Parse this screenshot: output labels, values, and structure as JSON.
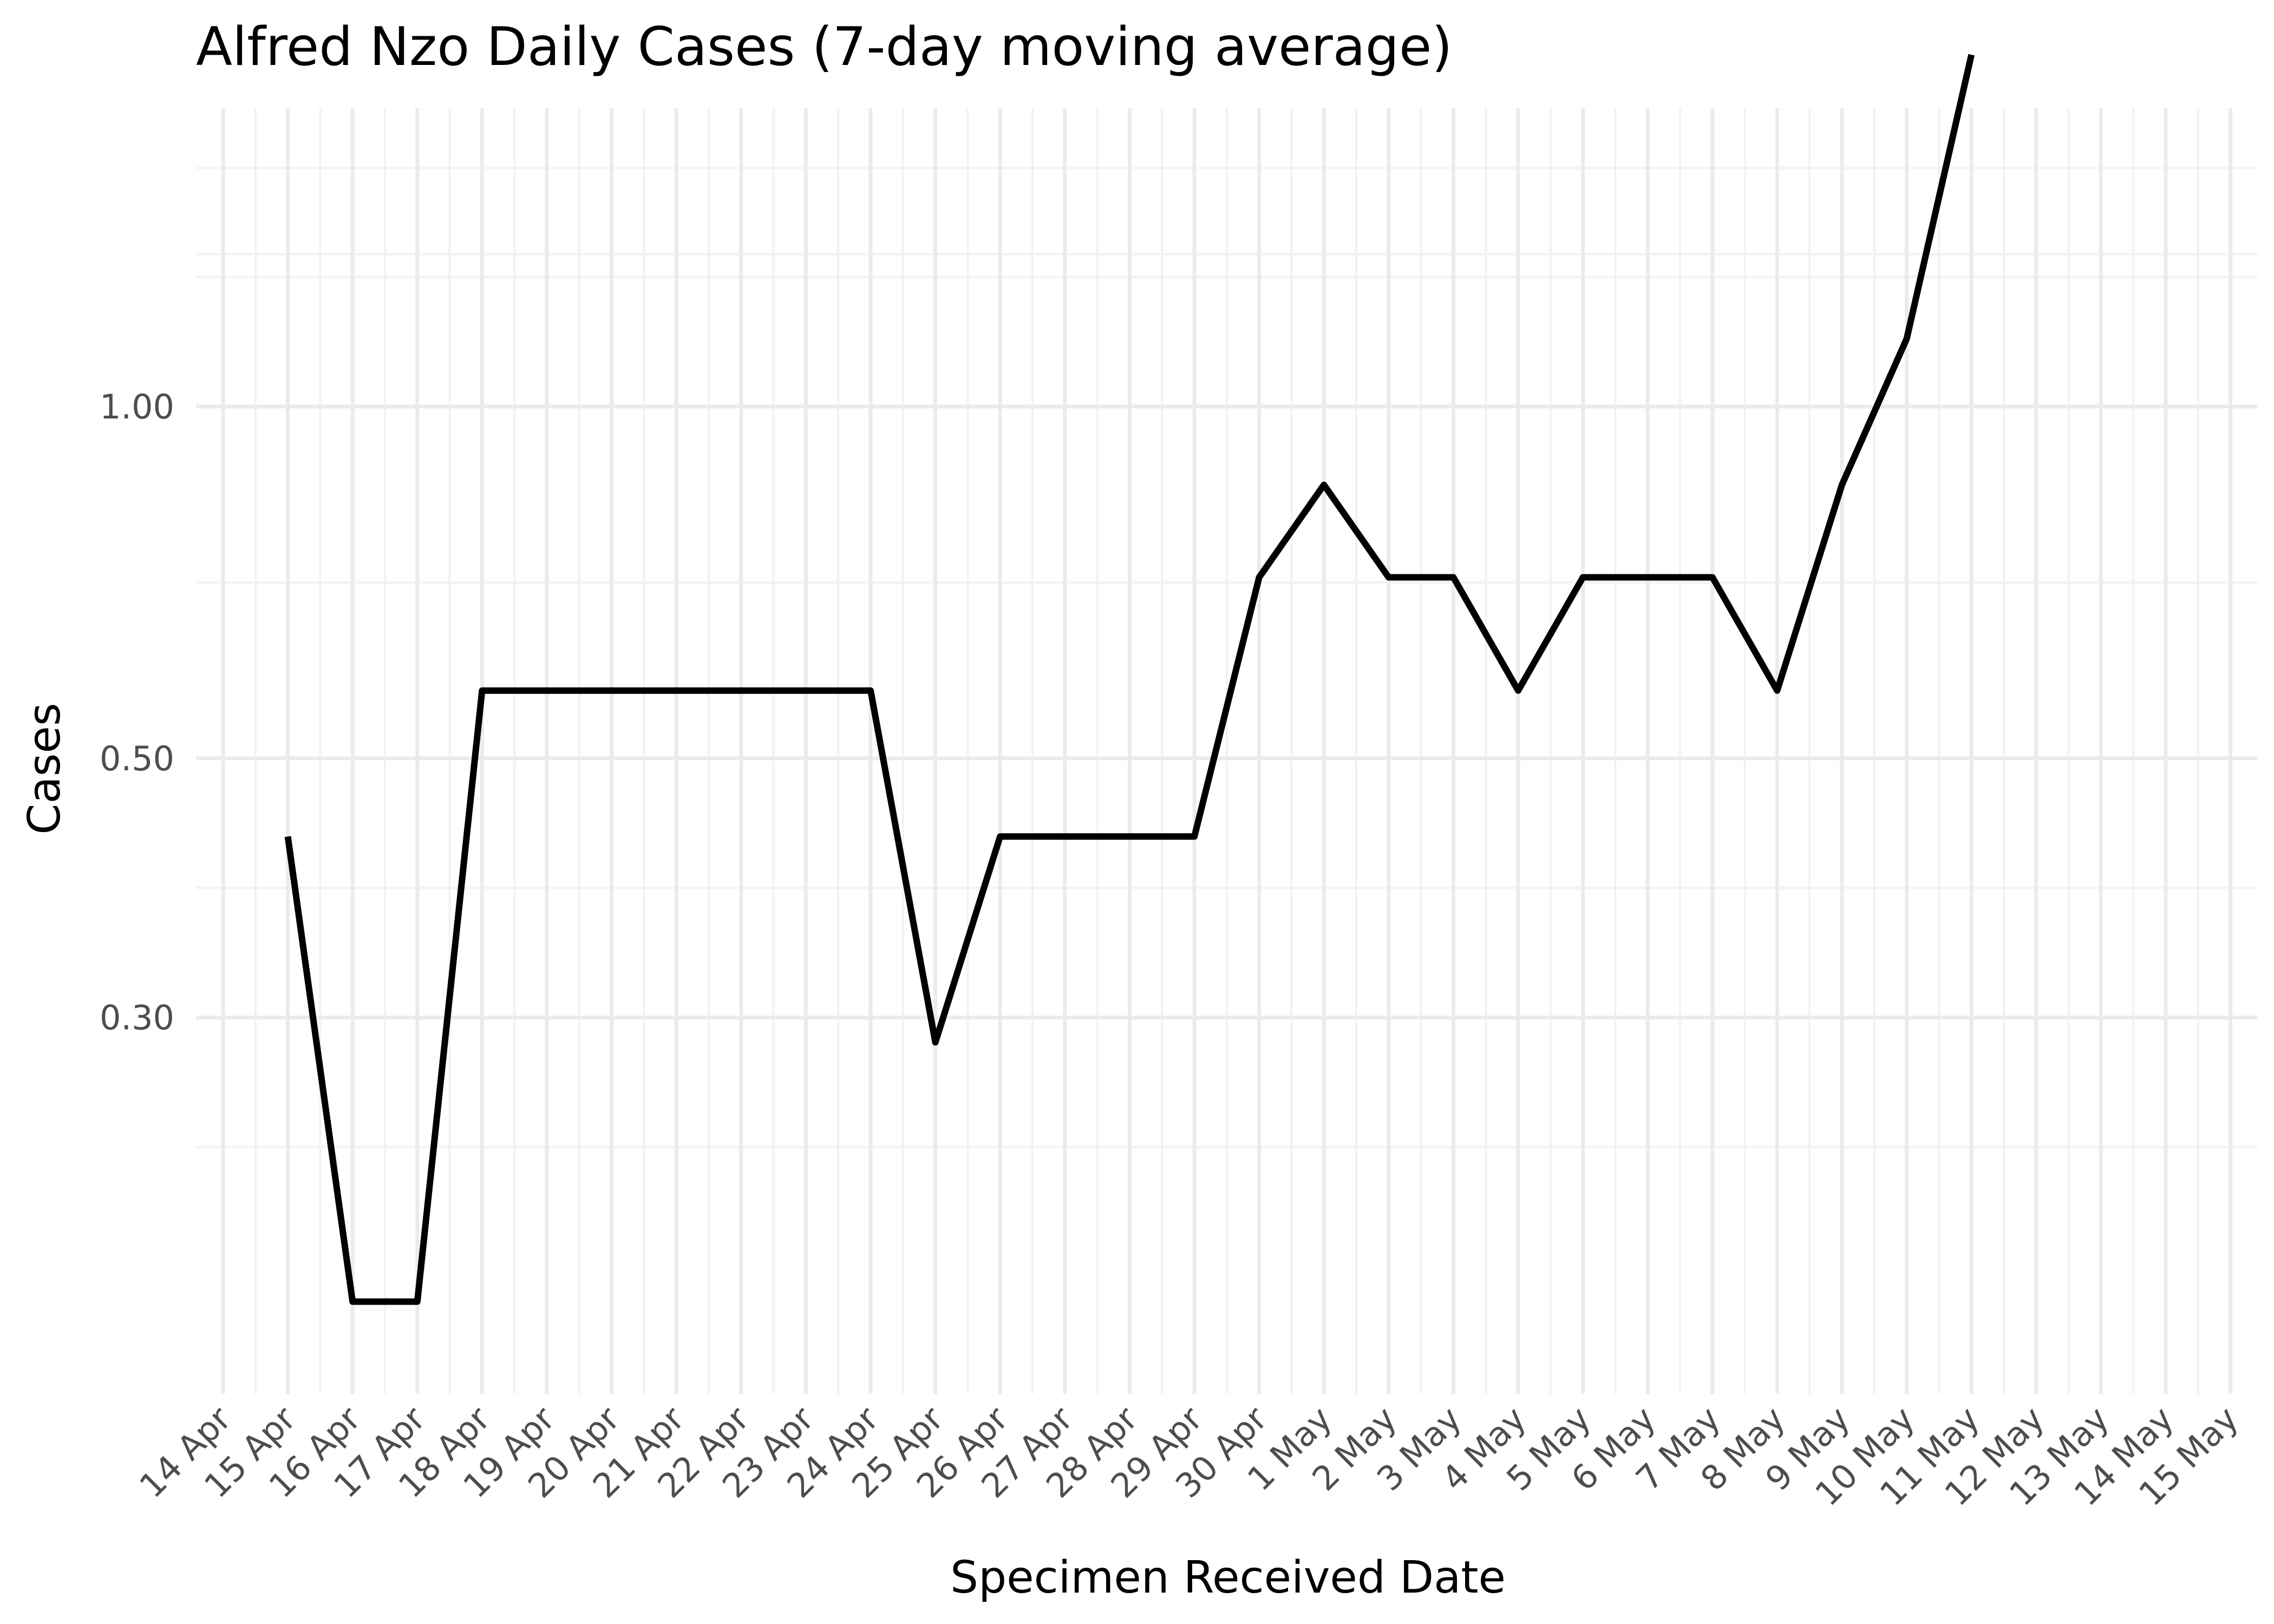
{
  "chart_data": {
    "type": "line",
    "title": "Alfred Nzo Daily Cases (7-day moving average)",
    "xlabel": "Specimen Received Date",
    "ylabel": "Cases",
    "y_scale": "log",
    "ylim": [
      0.1429,
      1.8
    ],
    "y_ticks": [
      {
        "value": 0.3,
        "label": "0.30"
      },
      {
        "value": 0.5,
        "label": "0.50"
      },
      {
        "value": 1.0,
        "label": "1.00"
      }
    ],
    "x_tick_labels": [
      "14 Apr",
      "15 Apr",
      "16 Apr",
      "17 Apr",
      "18 Apr",
      "19 Apr",
      "20 Apr",
      "21 Apr",
      "22 Apr",
      "23 Apr",
      "24 Apr",
      "25 Apr",
      "26 Apr",
      "27 Apr",
      "28 Apr",
      "29 Apr",
      "30 Apr",
      "1 May",
      "2 May",
      "3 May",
      "4 May",
      "5 May",
      "6 May",
      "7 May",
      "8 May",
      "9 May",
      "10 May",
      "11 May",
      "12 May",
      "13 May",
      "14 May",
      "15 May"
    ],
    "grid": true,
    "series": [
      {
        "color": "#000000",
        "x": [
          "15 Apr",
          "16 Apr",
          "17 Apr",
          "18 Apr",
          "19 Apr",
          "20 Apr",
          "21 Apr",
          "22 Apr",
          "23 Apr",
          "24 Apr",
          "25 Apr",
          "26 Apr",
          "27 Apr",
          "28 Apr",
          "29 Apr",
          "30 Apr",
          "1 May",
          "2 May",
          "3 May",
          "4 May",
          "5 May",
          "6 May",
          "7 May",
          "8 May",
          "9 May",
          "10 May",
          "11 May"
        ],
        "values": [
          0.4286,
          0.1714,
          0.1714,
          0.5714,
          0.5714,
          0.5714,
          0.5714,
          0.5714,
          0.5714,
          0.5714,
          0.2857,
          0.4286,
          0.4286,
          0.4286,
          0.4286,
          0.7143,
          0.8571,
          0.7143,
          0.7143,
          0.5714,
          0.7143,
          0.7143,
          0.7143,
          0.5714,
          0.8571,
          1.1429,
          2.0
        ]
      }
    ]
  }
}
